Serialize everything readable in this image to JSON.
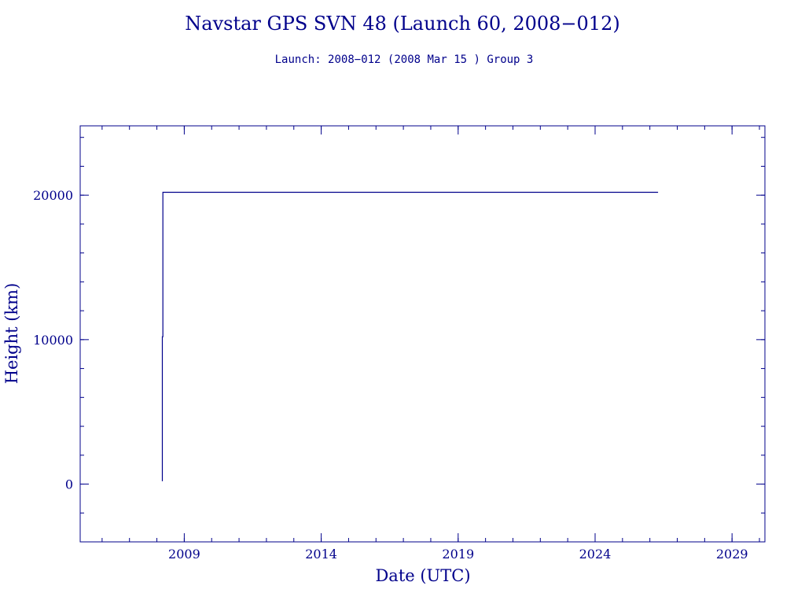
{
  "chart_data": {
    "type": "line",
    "title": "Navstar GPS SVN 48 (Launch 60, 2008−012)",
    "subtitle": "Launch: 2008−012  (2008 Mar 15 )  Group 3",
    "xlabel": "Date (UTC)",
    "ylabel": "Height (km)",
    "xlim": [
      2005.2,
      2030.2
    ],
    "ylim": [
      -4000,
      24800
    ],
    "x_ticks": [
      {
        "value": 2009,
        "label": "2009"
      },
      {
        "value": 2014,
        "label": "2014"
      },
      {
        "value": 2019,
        "label": "2019"
      },
      {
        "value": 2024,
        "label": "2024"
      },
      {
        "value": 2029,
        "label": "2029"
      }
    ],
    "y_ticks": [
      {
        "value": 0,
        "label": "0"
      },
      {
        "value": 10000,
        "label": "10000"
      },
      {
        "value": 20000,
        "label": "20000"
      }
    ],
    "x_minor_step": 1,
    "y_minor_step": 2000,
    "grid": false,
    "color": "#00008b",
    "series": [
      {
        "x": [
          2008.2,
          2008.2,
          2008.22,
          2008.22,
          2026.3
        ],
        "y": [
          200,
          10200,
          10200,
          20200,
          20200
        ]
      }
    ]
  }
}
